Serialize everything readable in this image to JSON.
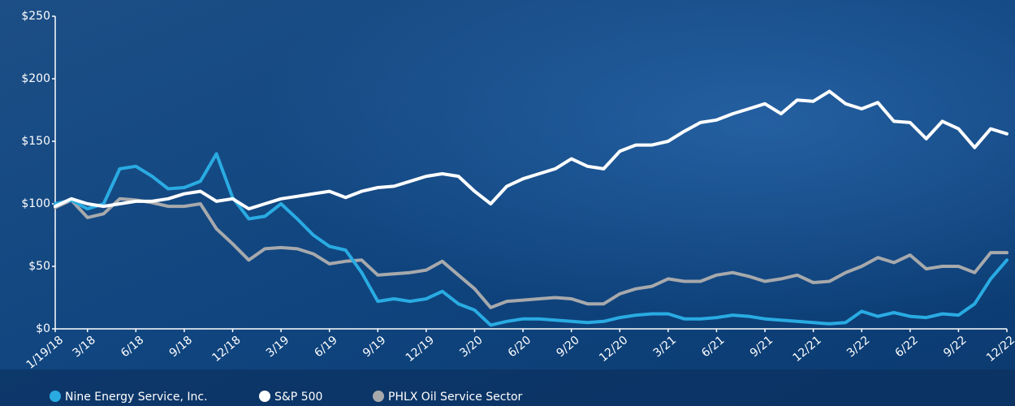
{
  "chart_data": {
    "type": "line",
    "categories": [
      "1/19/18",
      null,
      "3/18",
      null,
      null,
      "6/18",
      null,
      null,
      "9/18",
      null,
      null,
      "12/18",
      null,
      null,
      "3/19",
      null,
      null,
      "6/19",
      null,
      null,
      "9/19",
      null,
      null,
      "12/19",
      null,
      null,
      "3/20",
      null,
      null,
      "6/20",
      null,
      null,
      "9/20",
      null,
      null,
      "12/20",
      null,
      null,
      "3/21",
      null,
      null,
      "6/21",
      null,
      null,
      "9/21",
      null,
      null,
      "12/21",
      null,
      null,
      "3/22",
      null,
      null,
      "6/22",
      null,
      null,
      "9/22",
      null,
      null,
      "12/22"
    ],
    "series": [
      {
        "name": "Nine Energy Service, Inc.",
        "color": "#29abe2",
        "values": [
          100,
          103,
          96,
          100,
          128,
          130,
          122,
          112,
          113,
          118,
          140,
          105,
          88,
          90,
          100,
          88,
          75,
          66,
          63,
          45,
          22,
          24,
          22,
          24,
          30,
          20,
          15,
          3,
          6,
          8,
          8,
          7,
          6,
          5,
          6,
          9,
          11,
          12,
          12,
          8,
          8,
          9,
          11,
          10,
          8,
          7,
          6,
          5,
          4,
          5,
          14,
          10,
          13,
          10,
          9,
          12,
          11,
          20,
          40,
          55
        ]
      },
      {
        "name": "S&P 500",
        "color": "#ffffff",
        "values": [
          98,
          104,
          100,
          98,
          100,
          102,
          102,
          104,
          108,
          110,
          102,
          104,
          96,
          100,
          104,
          106,
          108,
          110,
          105,
          110,
          113,
          114,
          118,
          122,
          124,
          122,
          110,
          100,
          114,
          120,
          124,
          128,
          136,
          130,
          128,
          142,
          147,
          147,
          150,
          158,
          165,
          167,
          172,
          176,
          180,
          172,
          183,
          182,
          190,
          180,
          176,
          181,
          166,
          165,
          152,
          166,
          160,
          145,
          160,
          156
        ]
      },
      {
        "name": "PHLX Oil Service Sector",
        "color": "#a7a9ac",
        "values": [
          97,
          103,
          89,
          92,
          104,
          103,
          101,
          98,
          98,
          100,
          80,
          68,
          55,
          64,
          65,
          64,
          60,
          52,
          54,
          55,
          43,
          44,
          45,
          47,
          54,
          43,
          32,
          17,
          22,
          23,
          24,
          25,
          24,
          20,
          20,
          28,
          32,
          34,
          40,
          38,
          38,
          43,
          45,
          42,
          38,
          40,
          43,
          37,
          38,
          45,
          50,
          57,
          53,
          59,
          48,
          50,
          50,
          45,
          61,
          61
        ]
      }
    ],
    "ylim": [
      0,
      250
    ],
    "yticks": [
      {
        "value": 0,
        "label": "$0"
      },
      {
        "value": 50,
        "label": "$50"
      },
      {
        "value": 100,
        "label": "$100"
      },
      {
        "value": 150,
        "label": "$150"
      },
      {
        "value": 200,
        "label": "$200"
      },
      {
        "value": 250,
        "label": "$250"
      }
    ],
    "legend": "bottom-left"
  }
}
